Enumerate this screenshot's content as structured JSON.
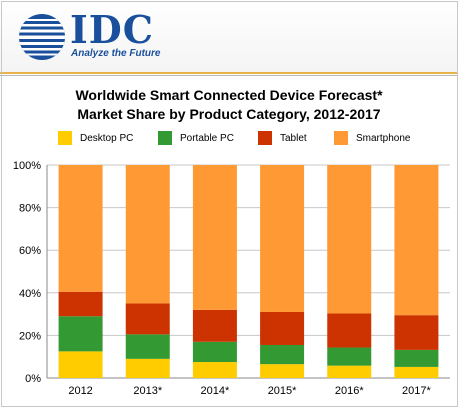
{
  "header": {
    "logo_name": "IDC",
    "tagline": "Analyze the Future"
  },
  "chart_data": {
    "type": "bar",
    "stacked": true,
    "title_line1": "Worldwide Smart Connected Device Forecast*",
    "title_line2": "Market Share by Product Category, 2012-2017",
    "categories": [
      "2012",
      "2013*",
      "2014*",
      "2015*",
      "2016*",
      "2017*"
    ],
    "series": [
      {
        "name": "Desktop PC",
        "color": "#ffcc00",
        "values": [
          12.5,
          9.0,
          7.5,
          6.5,
          5.8,
          5.2
        ]
      },
      {
        "name": "Portable PC",
        "color": "#339933",
        "values": [
          16.5,
          11.5,
          9.5,
          9.0,
          8.5,
          8.0
        ]
      },
      {
        "name": "Tablet",
        "color": "#cc3300",
        "values": [
          11.5,
          14.5,
          15.0,
          15.5,
          16.0,
          16.3
        ]
      },
      {
        "name": "Smartphone",
        "color": "#ff9933",
        "values": [
          59.5,
          65.0,
          68.0,
          69.0,
          69.7,
          70.5
        ]
      }
    ],
    "yticks": [
      "0%",
      "20%",
      "40%",
      "60%",
      "80%",
      "100%"
    ],
    "ylim": [
      0,
      100
    ],
    "grid": true,
    "legend_position": "top"
  }
}
